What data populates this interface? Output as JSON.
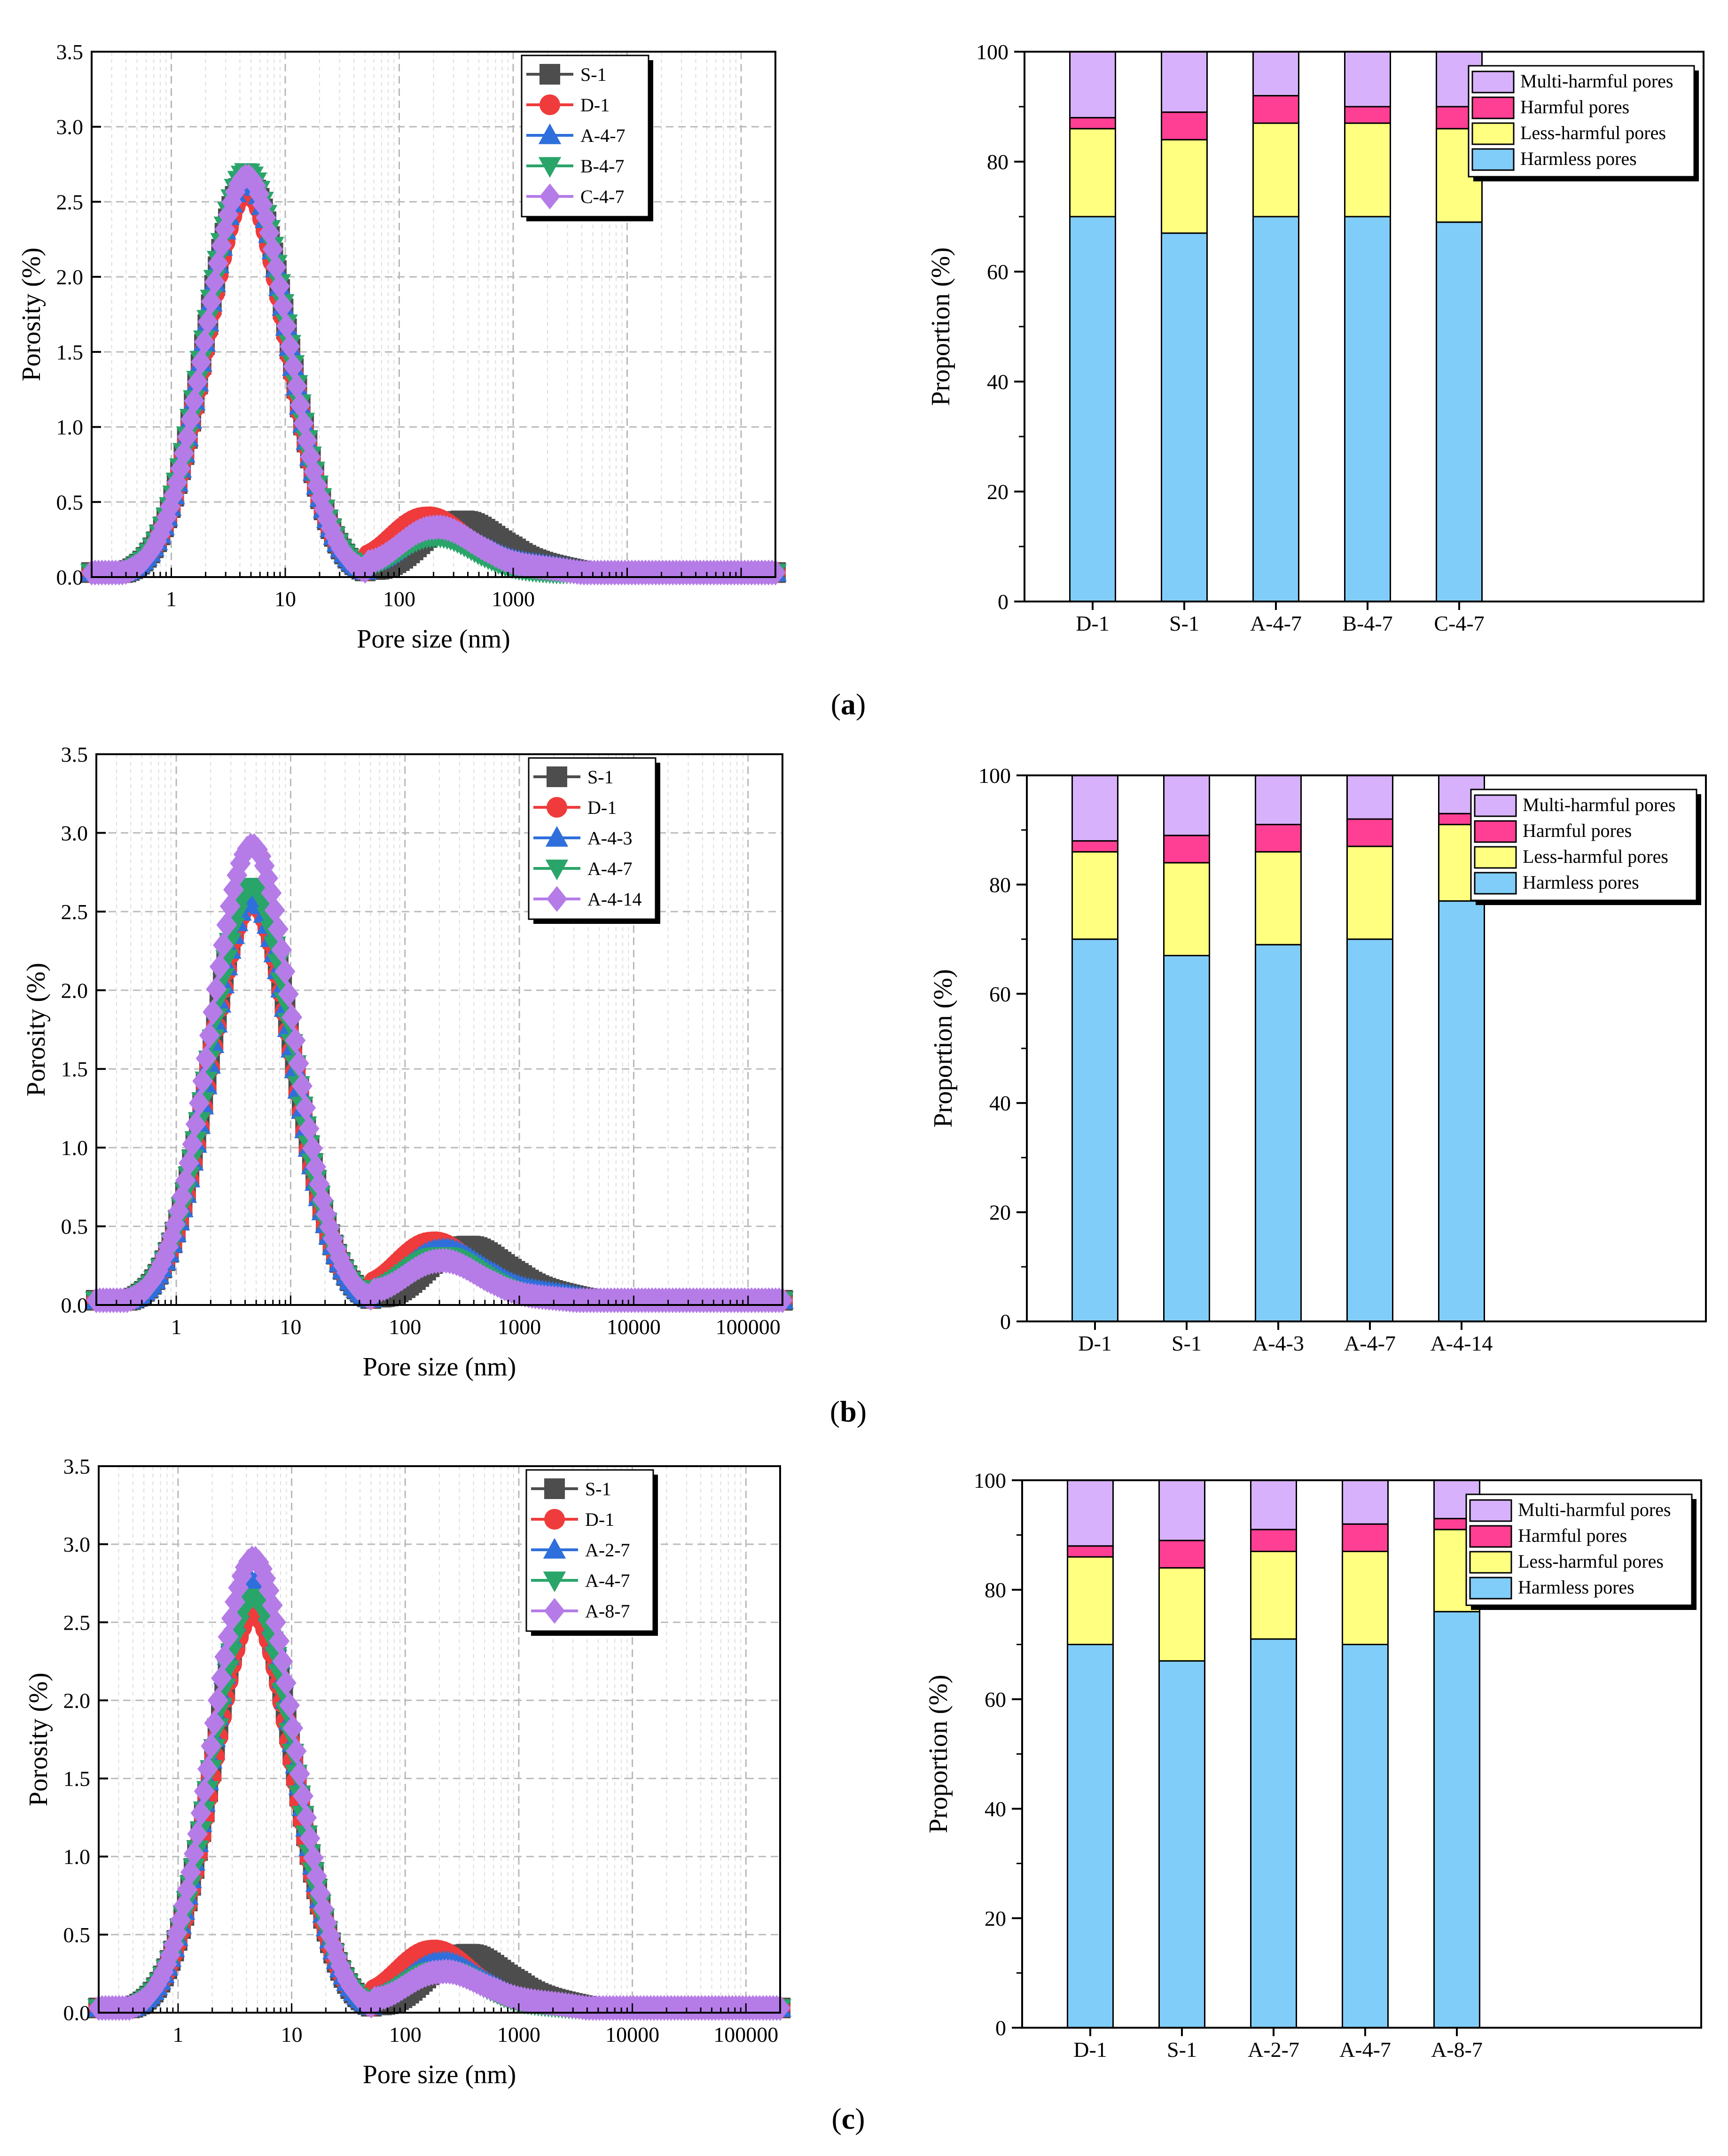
{
  "colors": {
    "S-1": "#4d4d4d",
    "D-1": "#ef3b3b",
    "A": "#2f6fdc",
    "B": "#2aa56a",
    "C": "#b57ce8",
    "Harmless pores": "#81cdf9",
    "Less-harmful pores": "#ffff80",
    "Harmful pores": "#ff3f93",
    "Multi-harmful pores": "#d7b1fb"
  },
  "panel_labels": [
    "a",
    "b",
    "c"
  ],
  "chart_data": [
    {
      "id": "a-porosity",
      "type": "line",
      "title": "",
      "xlabel": "Pore size (nm)",
      "ylabel": "Porosity (%)",
      "xscale": "log",
      "xlim": [
        0.2,
        200000
      ],
      "ylim": [
        0,
        3.5
      ],
      "xticks": [
        1,
        10,
        100,
        1000
      ],
      "yticks": [
        0.0,
        0.5,
        1.0,
        1.5,
        2.0,
        2.5,
        3.0,
        3.5
      ],
      "ytick_labels": [
        "0.0",
        "0.5",
        "1.0",
        "1.5",
        "2.0",
        "2.5",
        "3.0",
        "3.5"
      ],
      "grid": true,
      "legend": "top-right",
      "series": [
        {
          "name": "S-1",
          "marker": "square",
          "peak1": 2.64,
          "peak2": 0.37,
          "peak2_x": 320,
          "tail": 0.09
        },
        {
          "name": "D-1",
          "marker": "circle",
          "peak1": 2.57,
          "peak2": 0.4,
          "peak2_x": 170,
          "tail": 0.06
        },
        {
          "name": "A-4-7",
          "marker": "triangle-up",
          "peak1": 2.66,
          "peak2": 0.31,
          "peak2_x": 200,
          "tail": 0.09
        },
        {
          "name": "B-4-7",
          "marker": "triangle-down",
          "peak1": 2.7,
          "peak2": 0.27,
          "peak2_x": 200,
          "tail": 0.04
        },
        {
          "name": "C-4-7",
          "marker": "diamond",
          "peak1": 2.67,
          "peak2": 0.33,
          "peak2_x": 200,
          "tail": 0.07
        }
      ]
    },
    {
      "id": "a-proportion",
      "type": "bar",
      "stacked": true,
      "title": "",
      "xlabel": "",
      "ylabel": "Proportion (%)",
      "ylim": [
        0,
        100
      ],
      "yticks": [
        0,
        20,
        40,
        60,
        80,
        100
      ],
      "legend": "top-right",
      "categories": [
        "D-1",
        "S-1",
        "A-4-7",
        "B-4-7",
        "C-4-7"
      ],
      "series": [
        {
          "name": "Harmless pores",
          "values": [
            70,
            67,
            70,
            70,
            69
          ]
        },
        {
          "name": "Less-harmful pores",
          "values": [
            16,
            17,
            17,
            17,
            17
          ]
        },
        {
          "name": "Harmful pores",
          "values": [
            2,
            5,
            5,
            3,
            4
          ]
        },
        {
          "name": "Multi-harmful pores",
          "values": [
            12,
            11,
            8,
            10,
            10
          ]
        }
      ]
    },
    {
      "id": "b-porosity",
      "type": "line",
      "title": "",
      "xlabel": "Pore size (nm)",
      "ylabel": "Porosity (%)",
      "xscale": "log",
      "xlim": [
        0.2,
        200000
      ],
      "ylim": [
        0,
        3.5
      ],
      "xticks": [
        1,
        10,
        100,
        1000,
        10000,
        100000
      ],
      "yticks": [
        0.0,
        0.5,
        1.0,
        1.5,
        2.0,
        2.5,
        3.0,
        3.5
      ],
      "ytick_labels": [
        "0.0",
        "0.5",
        "1.0",
        "1.5",
        "2.0",
        "2.5",
        "3.0",
        "3.5"
      ],
      "grid": true,
      "legend": "top-right",
      "series": [
        {
          "name": "S-1",
          "marker": "square",
          "peak1": 2.64,
          "peak2": 0.37,
          "peak2_x": 320,
          "tail": 0.09
        },
        {
          "name": "D-1",
          "marker": "circle",
          "peak1": 2.57,
          "peak2": 0.4,
          "peak2_x": 170,
          "tail": 0.06
        },
        {
          "name": "A-4-3",
          "marker": "triangle-up",
          "peak1": 2.6,
          "peak2": 0.35,
          "peak2_x": 200,
          "tail": 0.09
        },
        {
          "name": "A-4-7",
          "marker": "triangle-down",
          "peak1": 2.66,
          "peak2": 0.31,
          "peak2_x": 200,
          "tail": 0.05
        },
        {
          "name": "A-4-14",
          "marker": "diamond",
          "peak1": 2.92,
          "peak2": 0.28,
          "peak2_x": 200,
          "tail": 0.05
        }
      ]
    },
    {
      "id": "b-proportion",
      "type": "bar",
      "stacked": true,
      "title": "",
      "xlabel": "",
      "ylabel": "Proportion (%)",
      "ylim": [
        0,
        100
      ],
      "yticks": [
        0,
        20,
        40,
        60,
        80,
        100
      ],
      "legend": "top-right",
      "categories": [
        "D-1",
        "S-1",
        "A-4-3",
        "A-4-7",
        "A-4-14"
      ],
      "series": [
        {
          "name": "Harmless pores",
          "values": [
            70,
            67,
            69,
            70,
            77
          ]
        },
        {
          "name": "Less-harmful pores",
          "values": [
            16,
            17,
            17,
            17,
            14
          ]
        },
        {
          "name": "Harmful pores",
          "values": [
            2,
            5,
            5,
            5,
            2
          ]
        },
        {
          "name": "Multi-harmful pores",
          "values": [
            12,
            11,
            9,
            8,
            7
          ]
        }
      ]
    },
    {
      "id": "c-porosity",
      "type": "line",
      "title": "",
      "xlabel": "Pore size (nm)",
      "ylabel": "Porosity (%)",
      "xscale": "log",
      "xlim": [
        0.2,
        200000
      ],
      "ylim": [
        0,
        3.5
      ],
      "xticks": [
        1,
        10,
        100,
        1000,
        10000,
        100000
      ],
      "yticks": [
        0.0,
        0.5,
        1.0,
        1.5,
        2.0,
        2.5,
        3.0,
        3.5
      ],
      "ytick_labels": [
        "0.0",
        "0.5",
        "1.0",
        "1.5",
        "2.0",
        "2.5",
        "3.0",
        "3.5"
      ],
      "grid": true,
      "legend": "top-right",
      "series": [
        {
          "name": "S-1",
          "marker": "square",
          "peak1": 2.64,
          "peak2": 0.37,
          "peak2_x": 320,
          "tail": 0.09
        },
        {
          "name": "D-1",
          "marker": "circle",
          "peak1": 2.57,
          "peak2": 0.4,
          "peak2_x": 170,
          "tail": 0.06
        },
        {
          "name": "A-2-7",
          "marker": "triangle-up",
          "peak1": 2.76,
          "peak2": 0.32,
          "peak2_x": 200,
          "tail": 0.07
        },
        {
          "name": "A-4-7",
          "marker": "triangle-down",
          "peak1": 2.66,
          "peak2": 0.27,
          "peak2_x": 200,
          "tail": 0.05
        },
        {
          "name": "A-8-7",
          "marker": "diamond",
          "peak1": 2.91,
          "peak2": 0.26,
          "peak2_x": 200,
          "tail": 0.07
        }
      ]
    },
    {
      "id": "c-proportion",
      "type": "bar",
      "stacked": true,
      "title": "",
      "xlabel": "",
      "ylabel": "Proportion (%)",
      "ylim": [
        0,
        100
      ],
      "yticks": [
        0,
        20,
        40,
        60,
        80,
        100
      ],
      "legend": "top-right",
      "categories": [
        "D-1",
        "S-1",
        "A-2-7",
        "A-4-7",
        "A-8-7"
      ],
      "series": [
        {
          "name": "Harmless pores",
          "values": [
            70,
            67,
            71,
            70,
            76
          ]
        },
        {
          "name": "Less-harmful pores",
          "values": [
            16,
            17,
            16,
            17,
            15
          ]
        },
        {
          "name": "Harmful pores",
          "values": [
            2,
            5,
            4,
            5,
            2
          ]
        },
        {
          "name": "Multi-harmful pores",
          "values": [
            12,
            11,
            9,
            8,
            7
          ]
        }
      ]
    }
  ]
}
